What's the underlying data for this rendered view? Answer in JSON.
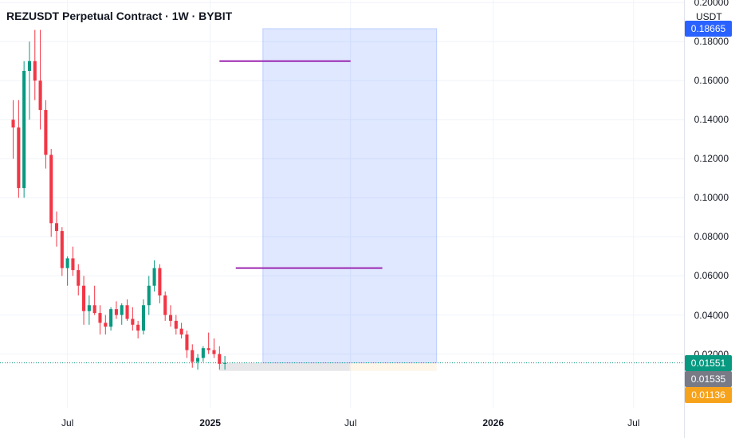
{
  "chart_header": {
    "title": "REZUSDT Perpetual Contract · 1W · BYBIT",
    "currency": "USDT"
  },
  "price_badges": [
    {
      "value": "0.18665",
      "price": 0.18665,
      "color": "#2962ff"
    },
    {
      "value": "0.01551",
      "price": 0.01551,
      "color": "#089981"
    },
    {
      "value": "0.01535",
      "price": 0.01535,
      "color": "#787b86"
    },
    {
      "value": "0.01136",
      "price": 0.01136,
      "color": "#f7a21b"
    }
  ],
  "chart_data": {
    "type": "candlestick",
    "title": "REZUSDT Perpetual Contract · 1W · BYBIT",
    "y_unit": "USDT",
    "ylim": [
      -0.0075,
      0.2013
    ],
    "xlim": [
      "2024-04-05",
      "2026-09-04"
    ],
    "y_ticks": [
      "0.20000",
      "0.18000",
      "0.16000",
      "0.14000",
      "0.12000",
      "0.10000",
      "0.08000",
      "0.06000",
      "0.04000",
      "0.02000"
    ],
    "y_tick_values": [
      0.2,
      0.18,
      0.16,
      0.14,
      0.12,
      0.1,
      0.08,
      0.06,
      0.04,
      0.02
    ],
    "x_ticks": [
      {
        "label": "Jul",
        "date": "2024-07-01",
        "bold": false
      },
      {
        "label": "2025",
        "date": "2025-01-01",
        "bold": true
      },
      {
        "label": "Jul",
        "date": "2025-07-01",
        "bold": false
      },
      {
        "label": "2026",
        "date": "2026-01-01",
        "bold": true
      },
      {
        "label": "Jul",
        "date": "2026-07-01",
        "bold": false
      }
    ],
    "first_week": "2024-04-22",
    "candles": [
      [
        0.14,
        0.15,
        0.12,
        0.136
      ],
      [
        0.136,
        0.15,
        0.1,
        0.105
      ],
      [
        0.105,
        0.17,
        0.1,
        0.165
      ],
      [
        0.165,
        0.18,
        0.14,
        0.17
      ],
      [
        0.17,
        0.186,
        0.15,
        0.16
      ],
      [
        0.16,
        0.186,
        0.135,
        0.145
      ],
      [
        0.145,
        0.15,
        0.115,
        0.122
      ],
      [
        0.122,
        0.125,
        0.08,
        0.087
      ],
      [
        0.087,
        0.093,
        0.075,
        0.083
      ],
      [
        0.083,
        0.085,
        0.06,
        0.064
      ],
      [
        0.064,
        0.07,
        0.055,
        0.069
      ],
      [
        0.069,
        0.075,
        0.06,
        0.063
      ],
      [
        0.063,
        0.066,
        0.05,
        0.055
      ],
      [
        0.055,
        0.06,
        0.035,
        0.042
      ],
      [
        0.042,
        0.05,
        0.035,
        0.045
      ],
      [
        0.045,
        0.055,
        0.04,
        0.041
      ],
      [
        0.041,
        0.045,
        0.03,
        0.036
      ],
      [
        0.036,
        0.04,
        0.03,
        0.034
      ],
      [
        0.034,
        0.044,
        0.032,
        0.043
      ],
      [
        0.043,
        0.047,
        0.038,
        0.04
      ],
      [
        0.04,
        0.046,
        0.035,
        0.045
      ],
      [
        0.045,
        0.048,
        0.037,
        0.038
      ],
      [
        0.038,
        0.044,
        0.032,
        0.035
      ],
      [
        0.035,
        0.037,
        0.028,
        0.032
      ],
      [
        0.032,
        0.048,
        0.03,
        0.045
      ],
      [
        0.045,
        0.06,
        0.04,
        0.055
      ],
      [
        0.055,
        0.068,
        0.052,
        0.064
      ],
      [
        0.064,
        0.066,
        0.046,
        0.05
      ],
      [
        0.05,
        0.052,
        0.037,
        0.04
      ],
      [
        0.04,
        0.045,
        0.034,
        0.037
      ],
      [
        0.037,
        0.04,
        0.03,
        0.033
      ],
      [
        0.033,
        0.036,
        0.028,
        0.03
      ],
      [
        0.03,
        0.032,
        0.018,
        0.022
      ],
      [
        0.022,
        0.025,
        0.013,
        0.016
      ],
      [
        0.016,
        0.02,
        0.012,
        0.018
      ],
      [
        0.018,
        0.024,
        0.016,
        0.023
      ],
      [
        0.023,
        0.031,
        0.02,
        0.022
      ],
      [
        0.022,
        0.028,
        0.018,
        0.02
      ],
      [
        0.02,
        0.024,
        0.012,
        0.015
      ],
      [
        0.015,
        0.019,
        0.012,
        0.0155
      ]
    ],
    "projection_box": {
      "start": "2025-03-10",
      "end": "2025-10-20",
      "low": 0.01551,
      "high": 0.18665
    },
    "grey_box": {
      "start": "2025-01-13",
      "end": "2025-06-30",
      "low": 0.01136,
      "high": 0.01551
    },
    "orange_box": {
      "start": "2025-06-30",
      "end": "2025-10-20",
      "low": 0.01136,
      "high": 0.01551
    },
    "horizontal_lines": [
      {
        "price": 0.17,
        "start": "2025-01-13",
        "end": "2025-07-01",
        "color": "#9c27b0"
      },
      {
        "price": 0.064,
        "start": "2025-02-03",
        "end": "2025-08-11",
        "color": "#9c27b0"
      }
    ],
    "last_price_line": {
      "price": 0.01551,
      "color": "#089981"
    }
  }
}
